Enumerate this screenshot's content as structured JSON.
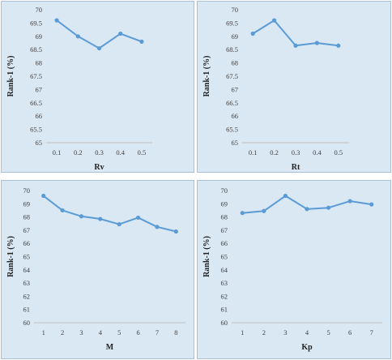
{
  "chart_data": [
    {
      "type": "line",
      "xlabel": "Rv",
      "ylabel": "Rank-1 (%)",
      "categories": [
        "0.1",
        "0.2",
        "0.3",
        "0.4",
        "0.5"
      ],
      "values": [
        69.6,
        69.0,
        68.55,
        69.1,
        68.8
      ],
      "ylim": [
        65,
        70
      ],
      "yticks": [
        "65",
        "65.5",
        "66",
        "66.5",
        "67",
        "67.5",
        "68",
        "68.5",
        "69",
        "69.5",
        "70"
      ],
      "color": "#5b9bd5"
    },
    {
      "type": "line",
      "xlabel": "Rt",
      "ylabel": "Rank-1 (%)",
      "categories": [
        "0.1",
        "0.2",
        "0.3",
        "0.4",
        "0.5"
      ],
      "values": [
        69.1,
        69.6,
        68.65,
        68.75,
        68.65
      ],
      "ylim": [
        65,
        70
      ],
      "yticks": [
        "65",
        "65.5",
        "66",
        "66.5",
        "67",
        "67.5",
        "68",
        "68.5",
        "69",
        "69.5",
        "70"
      ],
      "color": "#5b9bd5"
    },
    {
      "type": "line",
      "xlabel": "M",
      "ylabel": "Rank-1 (%)",
      "categories": [
        "1",
        "2",
        "3",
        "4",
        "5",
        "6",
        "7",
        "8"
      ],
      "values": [
        69.6,
        68.5,
        68.05,
        67.85,
        67.45,
        67.95,
        67.25,
        66.9
      ],
      "ylim": [
        60,
        70
      ],
      "yticks": [
        "60",
        "61",
        "62",
        "63",
        "64",
        "65",
        "66",
        "67",
        "68",
        "69",
        "70"
      ],
      "color": "#5b9bd5"
    },
    {
      "type": "line",
      "xlabel": "Kp",
      "ylabel": "Rank-1 (%)",
      "categories": [
        "1",
        "2",
        "3",
        "4",
        "5",
        "6",
        "7"
      ],
      "values": [
        68.3,
        68.45,
        69.6,
        68.6,
        68.7,
        69.2,
        68.95
      ],
      "ylim": [
        60,
        70
      ],
      "yticks": [
        "60",
        "61",
        "62",
        "63",
        "64",
        "65",
        "66",
        "67",
        "68",
        "69",
        "70"
      ],
      "color": "#5b9bd5"
    }
  ]
}
